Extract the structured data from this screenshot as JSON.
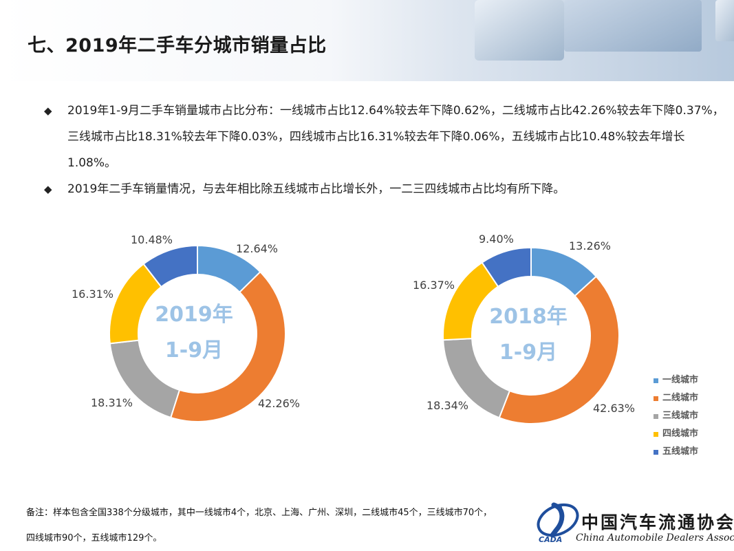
{
  "header": {
    "title": "七、2019年二手车分城市销量占比"
  },
  "bullets": [
    {
      "text": "2019年1-9月二手车销量城市占比分布：一线城市占比12.64%较去年下降0.62%，二线城市占比42.26%较去年下降0.37%，三线城市占比18.31%较去年下降0.03%，四线城市占比16.31%较去年下降0.06%，五线城市占比10.48%较去年增长1.08%。"
    },
    {
      "text": "2019年二手车销量情况，与去年相比除五线城市占比增长外，一二三四线城市占比均有所下降。"
    }
  ],
  "icons": {
    "bullet": "diamond-bullet-icon"
  },
  "colors": {
    "tier1": "#5b9bd5",
    "tier2": "#ed7d31",
    "tier3": "#a5a5a5",
    "tier4": "#ffc000",
    "tier5": "#4472c4",
    "center_label": "#9dc3e6"
  },
  "chart_data": [
    {
      "type": "pie",
      "variant": "donut",
      "center_label_line1": "2019年",
      "center_label_line2": "1-9月",
      "categories": [
        "一线城市",
        "二线城市",
        "三线城市",
        "四线城市",
        "五线城市"
      ],
      "values": [
        12.64,
        42.26,
        18.31,
        16.31,
        10.48
      ],
      "labels": [
        "12.64%",
        "42.26%",
        "18.31%",
        "16.31%",
        "10.48%"
      ]
    },
    {
      "type": "pie",
      "variant": "donut",
      "center_label_line1": "2018年",
      "center_label_line2": "1-9月",
      "categories": [
        "一线城市",
        "二线城市",
        "三线城市",
        "四线城市",
        "五线城市"
      ],
      "values": [
        13.26,
        42.63,
        18.34,
        16.37,
        9.4
      ],
      "labels": [
        "13.26%",
        "42.63%",
        "18.34%",
        "16.37%",
        "9.40%"
      ]
    }
  ],
  "legend": {
    "placement": "right",
    "items": [
      "一线城市",
      "二线城市",
      "三线城市",
      "四线城市",
      "五线城市"
    ]
  },
  "footnote": {
    "text": "备注：样本包含全国338个分级城市，其中一线城市4个，北京、上海、广州、深圳，二线城市45个，三线城市70个，四线城市90个，五线城市129个。"
  },
  "logo": {
    "name_cn": "中国汽车流通协会",
    "name_en": "China Automobile Dealers Association",
    "abbr": "CADA"
  }
}
